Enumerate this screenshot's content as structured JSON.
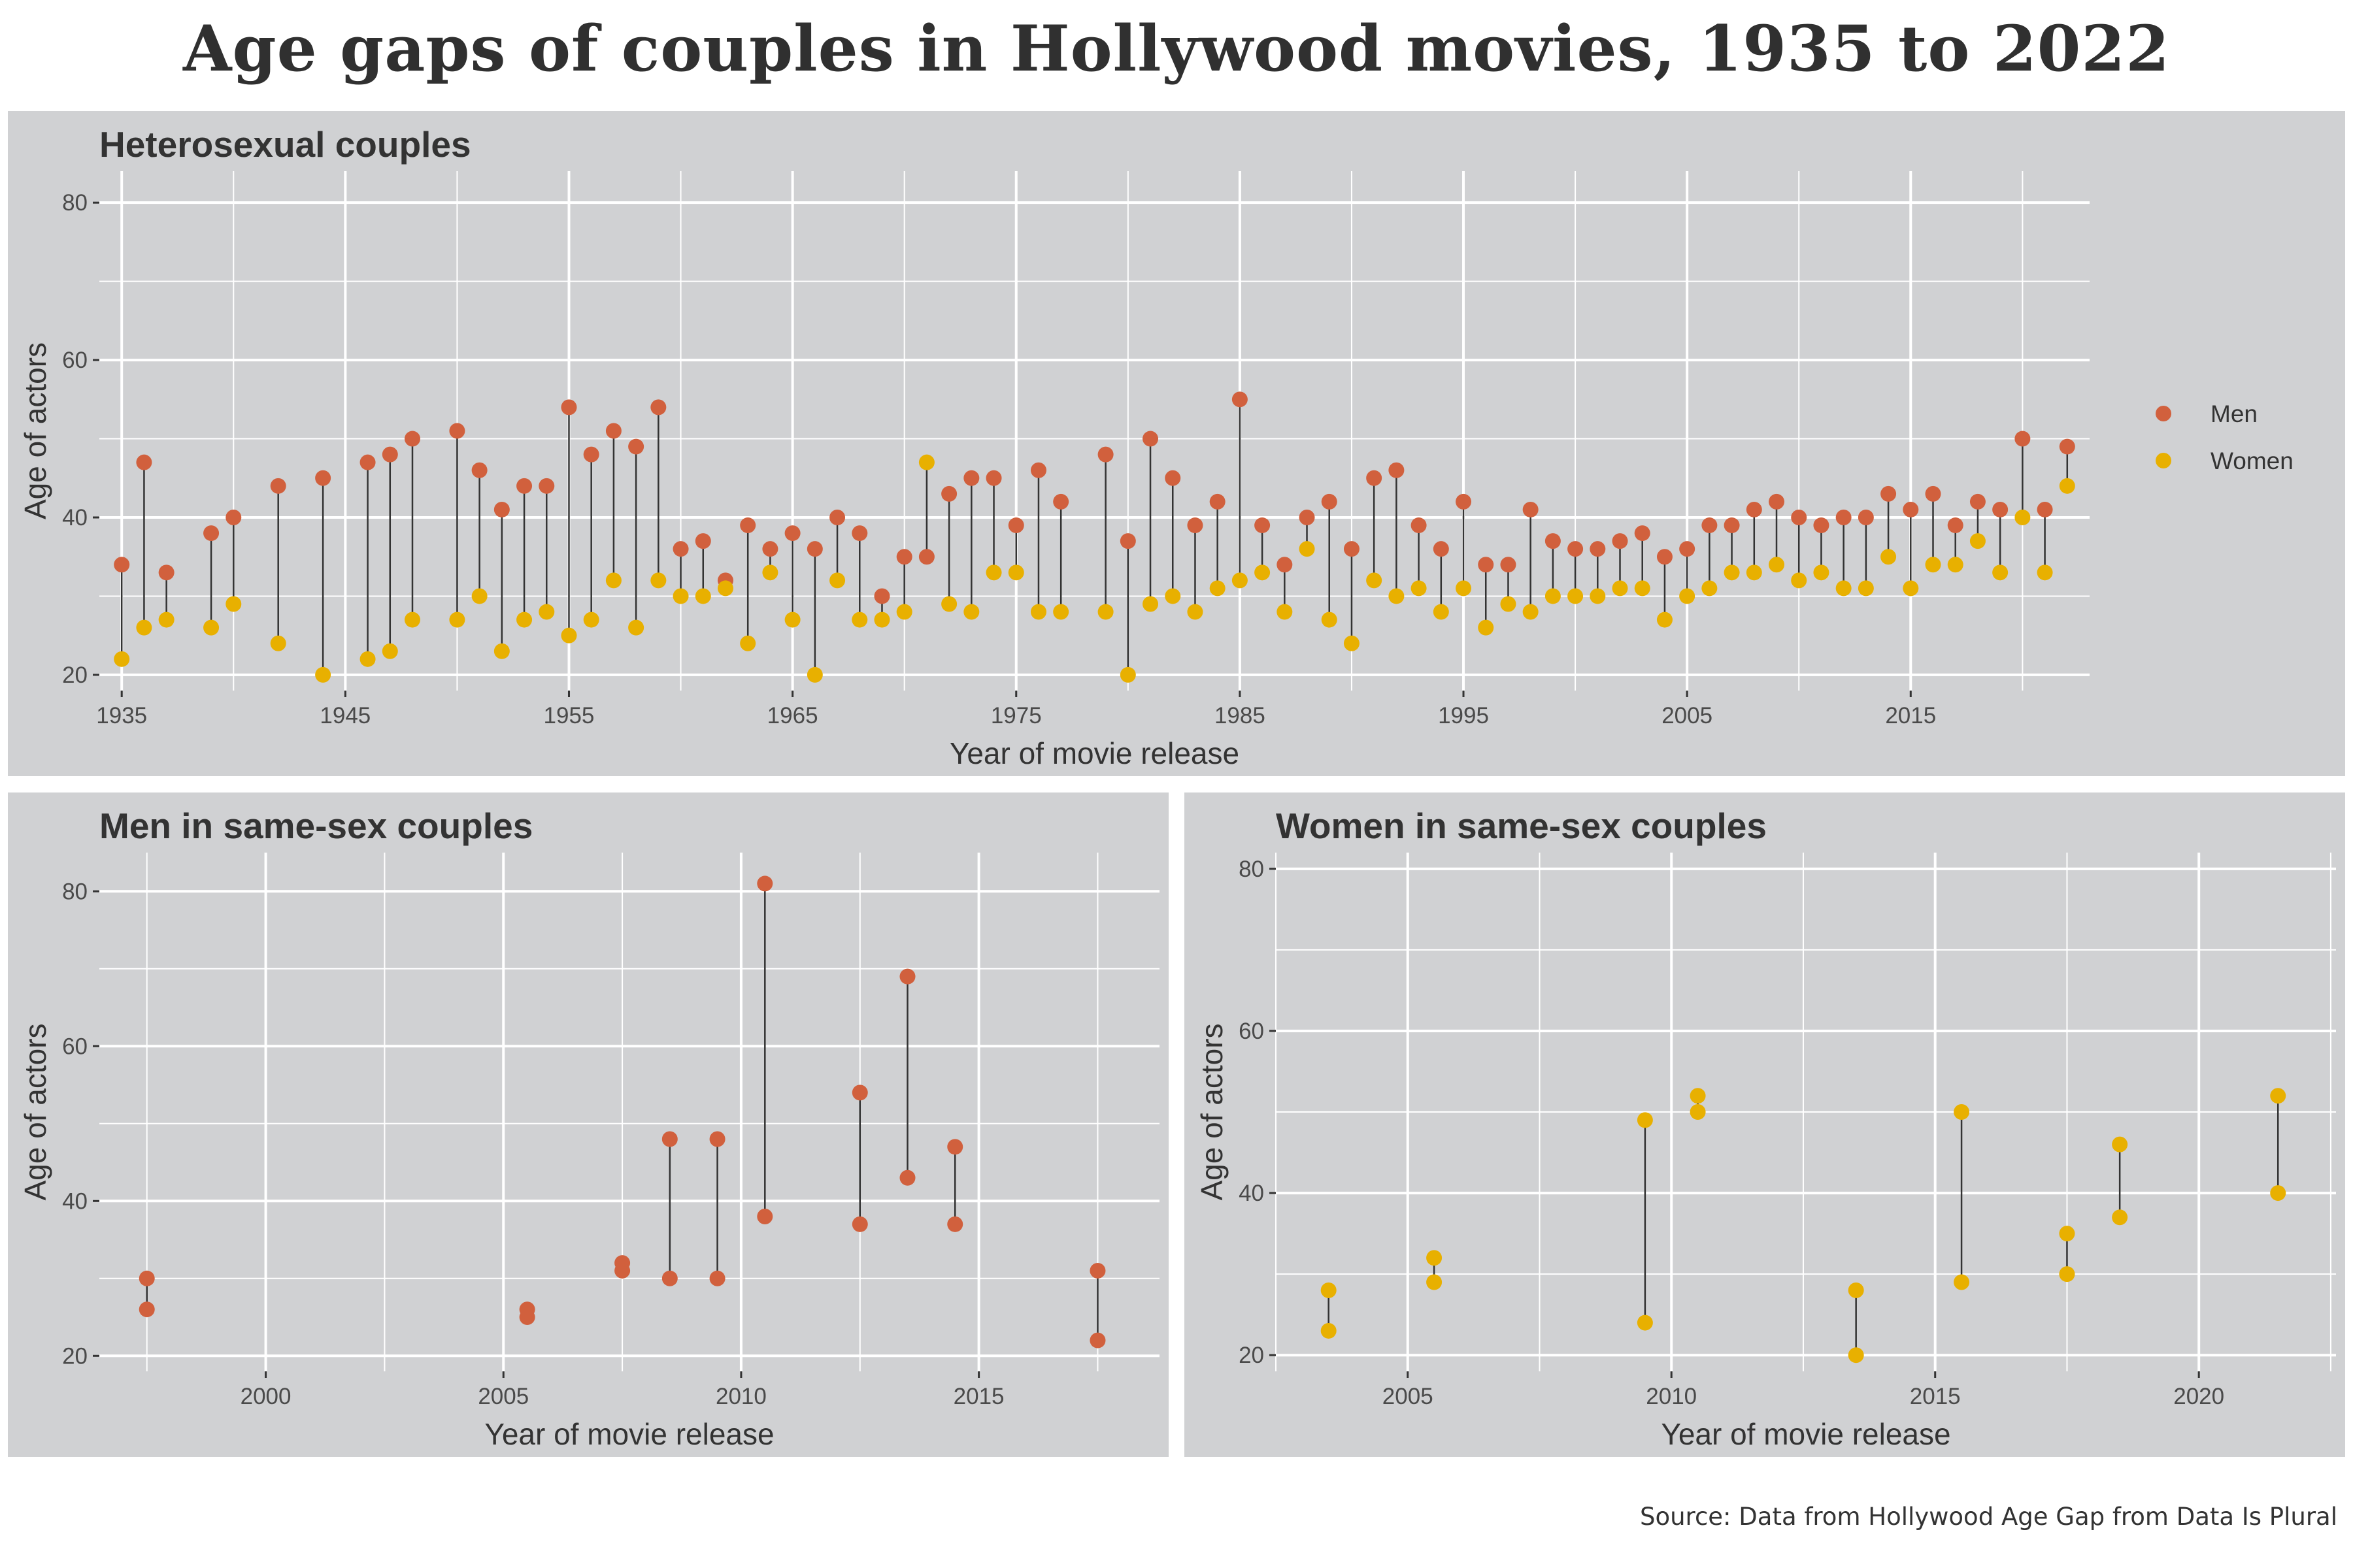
{
  "title": "Age gaps of couples in Hollywood movies, 1935 to 2022",
  "source": "Source: Data from Hollywood Age Gap from Data Is Plural",
  "colors": {
    "men": "#d1603d",
    "women": "#e8b000",
    "panel_bg": "#d0d1d3"
  },
  "legend": {
    "items": [
      {
        "label": "Men",
        "color": "#d1603d"
      },
      {
        "label": "Women",
        "color": "#e8b000"
      }
    ]
  },
  "chart_data": [
    {
      "type": "scatter",
      "title": "Heterosexual couples",
      "xlabel": "Year of movie release",
      "ylabel": "Age of actors",
      "xlim": [
        1934,
        2023
      ],
      "ylim": [
        18,
        84
      ],
      "xticks": [
        1935,
        1945,
        1955,
        1965,
        1975,
        1985,
        1995,
        2005,
        2015
      ],
      "yticks": [
        20,
        40,
        60,
        80
      ],
      "grid": true,
      "legend_position": "right",
      "series": [
        {
          "name": "Men",
          "color": "#d1603d",
          "points": [
            [
              1935,
              34
            ],
            [
              1936,
              47
            ],
            [
              1937,
              33
            ],
            [
              1939,
              38
            ],
            [
              1940,
              40
            ],
            [
              1942,
              44
            ],
            [
              1944,
              45
            ],
            [
              1946,
              47
            ],
            [
              1947,
              48
            ],
            [
              1948,
              50
            ],
            [
              1950,
              51
            ],
            [
              1951,
              46
            ],
            [
              1952,
              41
            ],
            [
              1953,
              44
            ],
            [
              1954,
              44
            ],
            [
              1955,
              54
            ],
            [
              1956,
              48
            ],
            [
              1957,
              51
            ],
            [
              1958,
              49
            ],
            [
              1959,
              54
            ],
            [
              1960,
              36
            ],
            [
              1961,
              37
            ],
            [
              1962,
              32
            ],
            [
              1963,
              39
            ],
            [
              1964,
              36
            ],
            [
              1965,
              38
            ],
            [
              1966,
              36
            ],
            [
              1967,
              40
            ],
            [
              1968,
              38
            ],
            [
              1969,
              30
            ],
            [
              1970,
              35
            ],
            [
              1971,
              35
            ],
            [
              1972,
              43
            ],
            [
              1973,
              45
            ],
            [
              1974,
              45
            ],
            [
              1975,
              39
            ],
            [
              1976,
              46
            ],
            [
              1977,
              42
            ],
            [
              1979,
              48
            ],
            [
              1980,
              37
            ],
            [
              1981,
              50
            ],
            [
              1982,
              45
            ],
            [
              1983,
              39
            ],
            [
              1984,
              42
            ],
            [
              1985,
              55
            ],
            [
              1986,
              39
            ],
            [
              1987,
              34
            ],
            [
              1988,
              40
            ],
            [
              1989,
              42
            ],
            [
              1990,
              36
            ],
            [
              1991,
              45
            ],
            [
              1992,
              46
            ],
            [
              1993,
              39
            ],
            [
              1994,
              36
            ],
            [
              1995,
              42
            ],
            [
              1996,
              34
            ],
            [
              1997,
              34
            ],
            [
              1998,
              41
            ],
            [
              1999,
              37
            ],
            [
              2000,
              36
            ],
            [
              2001,
              36
            ],
            [
              2002,
              37
            ],
            [
              2003,
              38
            ],
            [
              2004,
              35
            ],
            [
              2005,
              36
            ],
            [
              2006,
              39
            ],
            [
              2007,
              39
            ],
            [
              2008,
              41
            ],
            [
              2009,
              42
            ],
            [
              2010,
              40
            ],
            [
              2011,
              39
            ],
            [
              2012,
              40
            ],
            [
              2013,
              40
            ],
            [
              2014,
              43
            ],
            [
              2015,
              41
            ],
            [
              2016,
              43
            ],
            [
              2017,
              39
            ],
            [
              2018,
              42
            ],
            [
              2019,
              41
            ],
            [
              2020,
              50
            ],
            [
              2021,
              41
            ],
            [
              2022,
              49
            ]
          ]
        },
        {
          "name": "Women",
          "color": "#e8b000",
          "points": [
            [
              1935,
              22
            ],
            [
              1936,
              26
            ],
            [
              1937,
              27
            ],
            [
              1939,
              26
            ],
            [
              1940,
              29
            ],
            [
              1942,
              24
            ],
            [
              1944,
              20
            ],
            [
              1946,
              22
            ],
            [
              1947,
              23
            ],
            [
              1948,
              27
            ],
            [
              1950,
              27
            ],
            [
              1951,
              30
            ],
            [
              1952,
              23
            ],
            [
              1953,
              27
            ],
            [
              1954,
              28
            ],
            [
              1955,
              25
            ],
            [
              1956,
              27
            ],
            [
              1957,
              32
            ],
            [
              1958,
              26
            ],
            [
              1959,
              32
            ],
            [
              1960,
              30
            ],
            [
              1961,
              30
            ],
            [
              1962,
              31
            ],
            [
              1963,
              24
            ],
            [
              1964,
              33
            ],
            [
              1965,
              27
            ],
            [
              1966,
              20
            ],
            [
              1967,
              32
            ],
            [
              1968,
              27
            ],
            [
              1969,
              27
            ],
            [
              1970,
              28
            ],
            [
              1971,
              47
            ],
            [
              1972,
              29
            ],
            [
              1973,
              28
            ],
            [
              1974,
              33
            ],
            [
              1975,
              33
            ],
            [
              1976,
              28
            ],
            [
              1977,
              28
            ],
            [
              1979,
              28
            ],
            [
              1980,
              20
            ],
            [
              1981,
              29
            ],
            [
              1982,
              30
            ],
            [
              1983,
              28
            ],
            [
              1984,
              31
            ],
            [
              1985,
              32
            ],
            [
              1986,
              33
            ],
            [
              1987,
              28
            ],
            [
              1988,
              36
            ],
            [
              1989,
              27
            ],
            [
              1990,
              24
            ],
            [
              1991,
              32
            ],
            [
              1992,
              30
            ],
            [
              1993,
              31
            ],
            [
              1994,
              28
            ],
            [
              1995,
              31
            ],
            [
              1996,
              26
            ],
            [
              1997,
              29
            ],
            [
              1998,
              28
            ],
            [
              1999,
              30
            ],
            [
              2000,
              30
            ],
            [
              2001,
              30
            ],
            [
              2002,
              31
            ],
            [
              2003,
              31
            ],
            [
              2004,
              27
            ],
            [
              2005,
              30
            ],
            [
              2006,
              31
            ],
            [
              2007,
              33
            ],
            [
              2008,
              33
            ],
            [
              2009,
              34
            ],
            [
              2010,
              32
            ],
            [
              2011,
              33
            ],
            [
              2012,
              31
            ],
            [
              2013,
              31
            ],
            [
              2014,
              35
            ],
            [
              2015,
              31
            ],
            [
              2016,
              34
            ],
            [
              2017,
              34
            ],
            [
              2018,
              37
            ],
            [
              2019,
              33
            ],
            [
              2020,
              40
            ],
            [
              2021,
              33
            ],
            [
              2022,
              44
            ]
          ]
        }
      ]
    },
    {
      "type": "scatter",
      "title": "Men in same-sex couples",
      "xlabel": "Year of movie release",
      "ylabel": "Age of actors",
      "xlim": [
        1996.5,
        2018.8
      ],
      "ylim": [
        18,
        85
      ],
      "xticks": [
        2000,
        2005,
        2010,
        2015
      ],
      "yticks": [
        20,
        40,
        60,
        80
      ],
      "grid": true,
      "pairs": [
        {
          "x": 1997.5,
          "a": 30,
          "b": 26
        },
        {
          "x": 2005.5,
          "a": 26,
          "b": 25
        },
        {
          "x": 2007.5,
          "a": 32,
          "b": 31
        },
        {
          "x": 2008.5,
          "a": 48,
          "b": 30
        },
        {
          "x": 2009.5,
          "a": 48,
          "b": 30
        },
        {
          "x": 2010.5,
          "a": 81,
          "b": 38
        },
        {
          "x": 2012.5,
          "a": 54,
          "b": 37
        },
        {
          "x": 2013.5,
          "a": 69,
          "b": 43
        },
        {
          "x": 2014.5,
          "a": 47,
          "b": 37
        },
        {
          "x": 2017.5,
          "a": 31,
          "b": 22
        }
      ]
    },
    {
      "type": "scatter",
      "title": "Women in same-sex couples",
      "xlabel": "Year of movie release",
      "ylabel": "Age of actors",
      "xlim": [
        2002.5,
        2022.6
      ],
      "ylim": [
        18,
        82
      ],
      "xticks": [
        2005,
        2010,
        2015,
        2020
      ],
      "yticks": [
        20,
        40,
        60,
        80
      ],
      "grid": true,
      "pairs": [
        {
          "x": 2003.5,
          "a": 28,
          "b": 23
        },
        {
          "x": 2005.5,
          "a": 32,
          "b": 29
        },
        {
          "x": 2009.5,
          "a": 49,
          "b": 24
        },
        {
          "x": 2010.5,
          "a": 52,
          "b": 50
        },
        {
          "x": 2013.5,
          "a": 28,
          "b": 20
        },
        {
          "x": 2015.5,
          "a": 50,
          "b": 29
        },
        {
          "x": 2017.5,
          "a": 35,
          "b": 30
        },
        {
          "x": 2018.5,
          "a": 46,
          "b": 37
        },
        {
          "x": 2021.5,
          "a": 52,
          "b": 40
        }
      ]
    }
  ]
}
